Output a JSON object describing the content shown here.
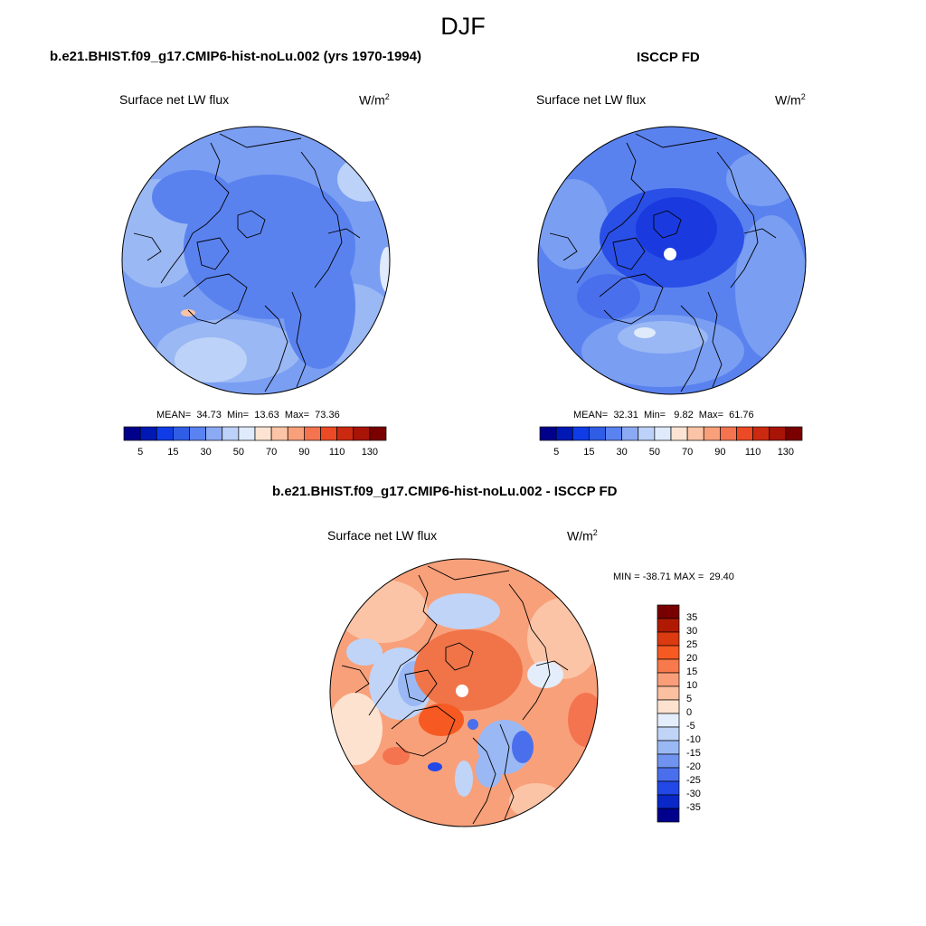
{
  "title": "DJF",
  "panels": [
    {
      "title": "b.e21.BHIST.f09_g17.CMIP6-hist-noLu.002 (yrs 1970-1994)",
      "variable": "Surface net LW flux",
      "units": "W/m",
      "units_sup": "2",
      "stats": "MEAN=  34.73  Min=  13.63  Max=  73.36",
      "mean": 34.73,
      "min": 13.63,
      "max": 73.36,
      "colorbar_labels": [
        "5",
        "15",
        "30",
        "50",
        "70",
        "90",
        "110",
        "130"
      ]
    },
    {
      "title": "ISCCP FD",
      "variable": "Surface net LW flux",
      "units": "W/m",
      "units_sup": "2",
      "stats": "MEAN=  32.31  Min=   9.82  Max=  61.76",
      "mean": 32.31,
      "min": 9.82,
      "max": 61.76,
      "colorbar_labels": [
        "5",
        "15",
        "30",
        "50",
        "70",
        "90",
        "110",
        "130"
      ]
    },
    {
      "title": "b.e21.BHIST.f09_g17.CMIP6-hist-noLu.002 - ISCCP FD",
      "variable": "Surface net LW flux",
      "units": "W/m",
      "units_sup": "2",
      "stats": "MIN = -38.71 MAX =  29.40",
      "min": -38.71,
      "max": 29.4,
      "colorbar_labels": [
        "35",
        "30",
        "25",
        "20",
        "15",
        "10",
        "5",
        "0",
        "-5",
        "-10",
        "-15",
        "-20",
        "-25",
        "-30",
        "-35"
      ]
    }
  ],
  "colors": {
    "abs_scale": [
      "#00008a",
      "#0019b4",
      "#0f3ce6",
      "#2f5de6",
      "#5a82f0",
      "#8caaf4",
      "#bcd2f8",
      "#dfeafb",
      "#fde3d2",
      "#fbc4a6",
      "#f8a07a",
      "#f57450",
      "#ec4a24",
      "#cc2a10",
      "#a81406",
      "#7a0000"
    ],
    "diff_scale": [
      "#780000",
      "#b01a02",
      "#dc3a10",
      "#f65a22",
      "#f87a4c",
      "#f99e78",
      "#fbc0a0",
      "#fde2d0",
      "#e4edfb",
      "#c0d4f8",
      "#9ab8f4",
      "#6f93ef",
      "#4a6fec",
      "#2348e8",
      "#0a28c8",
      "#00008c"
    ],
    "model_ocean": "#7a9ef2",
    "model_arctic": "#5a82ef",
    "obs_ocean": "#5a82ef",
    "obs_arctic": "#2a4fe6",
    "diff_base": "#f8a07a",
    "diff_arctic": "#f07448"
  }
}
